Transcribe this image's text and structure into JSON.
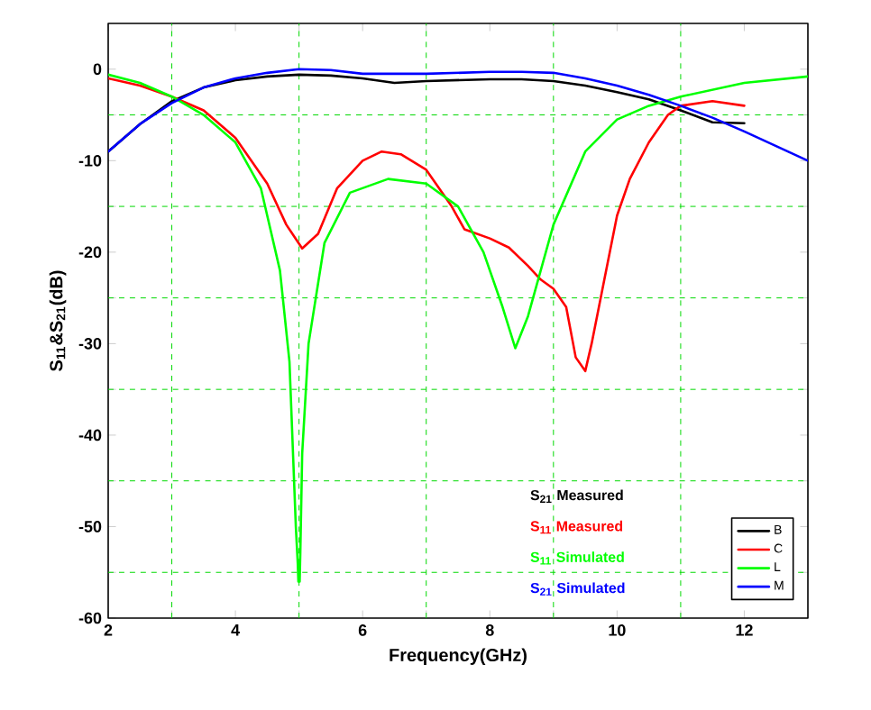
{
  "chart_data": {
    "type": "line",
    "xlabel": "Frequency(GHz)",
    "ylabel": "S$_{11}$&S$_{21}$(dB)",
    "xlim": [
      2,
      13
    ],
    "ylim": [
      -60,
      5
    ],
    "xticks": [
      2,
      {
        "value": 3,
        "label": null
      },
      4,
      {
        "value": 5,
        "label": null
      },
      6,
      {
        "value": 7,
        "label": null
      },
      8,
      {
        "value": 9,
        "label": null
      },
      10,
      {
        "value": 11,
        "label": null
      },
      12
    ],
    "yticks": [
      -60,
      {
        "value": -55,
        "label": null
      },
      -50,
      {
        "value": -45,
        "label": null
      },
      -40,
      {
        "value": -35,
        "label": null
      },
      -30,
      {
        "value": -25,
        "label": null
      },
      -20,
      {
        "value": -15,
        "label": null
      },
      -10,
      {
        "value": -5,
        "label": null
      },
      0
    ],
    "grid": true,
    "legend": "bottom right",
    "series": [
      {
        "name": "B",
        "color": "#000000",
        "x": [
          2,
          2.5,
          3,
          3.5,
          4,
          4.5,
          5,
          5.5,
          6,
          6.5,
          7,
          7.5,
          8,
          8.5,
          9,
          9.5,
          10,
          10.5,
          11,
          11.5,
          12
        ],
        "values": [
          -9,
          -6,
          -3.5,
          -2,
          -1.2,
          -0.8,
          -0.6,
          -0.7,
          -1.0,
          -1.5,
          -1.3,
          -1.2,
          -1.1,
          -1.1,
          -1.3,
          -1.8,
          -2.5,
          -3.3,
          -4.5,
          -5.8,
          -5.9
        ]
      },
      {
        "name": "C",
        "color": "#ff0000",
        "x": [
          2,
          2.5,
          3,
          3.5,
          4,
          4.5,
          4.8,
          5.05,
          5.3,
          5.6,
          6,
          6.3,
          6.6,
          7,
          7.4,
          7.6,
          8,
          8.3,
          8.6,
          8.8,
          9,
          9.2,
          9.35,
          9.5,
          9.6,
          9.8,
          10,
          10.2,
          10.5,
          10.8,
          11,
          11.5,
          12
        ],
        "values": [
          -1,
          -1.8,
          -3,
          -4.5,
          -7.5,
          -12.5,
          -17,
          -19.6,
          -18,
          -13,
          -10,
          -9,
          -9.3,
          -11,
          -15,
          -17.5,
          -18.5,
          -19.5,
          -21.5,
          -23,
          -24,
          -26,
          -31.5,
          -33,
          -30,
          -23,
          -16,
          -12,
          -8,
          -5,
          -4,
          -3.5,
          -4
        ]
      },
      {
        "name": "L",
        "color": "#00ff00",
        "x": [
          2,
          2.5,
          3,
          3.5,
          4,
          4.4,
          4.7,
          4.85,
          4.95,
          4.98,
          4.99,
          5.01,
          5.02,
          5.05,
          5.15,
          5.4,
          5.8,
          6.4,
          7,
          7.5,
          7.9,
          8.2,
          8.4,
          8.6,
          9,
          9.5,
          10,
          10.5,
          11,
          12,
          13
        ],
        "values": [
          -0.6,
          -1.5,
          -3,
          -5,
          -8,
          -13,
          -22,
          -32,
          -50,
          -54,
          -56,
          -56,
          -53,
          -42,
          -30,
          -19,
          -13.5,
          -12,
          -12.5,
          -15,
          -20,
          -26,
          -30.5,
          -27,
          -17,
          -9,
          -5.5,
          -4,
          -3,
          -1.5,
          -0.8
        ]
      },
      {
        "name": "M",
        "color": "#0000ff",
        "x": [
          2,
          2.5,
          3,
          3.5,
          4,
          4.5,
          5,
          5.5,
          6,
          6.5,
          7,
          7.5,
          8,
          8.5,
          9,
          9.5,
          10,
          10.5,
          11,
          11.5,
          12,
          12.5,
          13
        ],
        "values": [
          -9,
          -6,
          -3.7,
          -2,
          -1.0,
          -0.4,
          0,
          -0.1,
          -0.5,
          -0.5,
          -0.5,
          -0.4,
          -0.3,
          -0.3,
          -0.4,
          -1.0,
          -1.8,
          -2.8,
          -4.0,
          -5.3,
          -6.8,
          -8.4,
          -10
        ]
      }
    ],
    "annotations": [
      "S$_{21}$ Measured",
      "S$_{11}$ Measured",
      "S$_{11}$ Simulated",
      "S$_{21}$ Simulated"
    ]
  }
}
